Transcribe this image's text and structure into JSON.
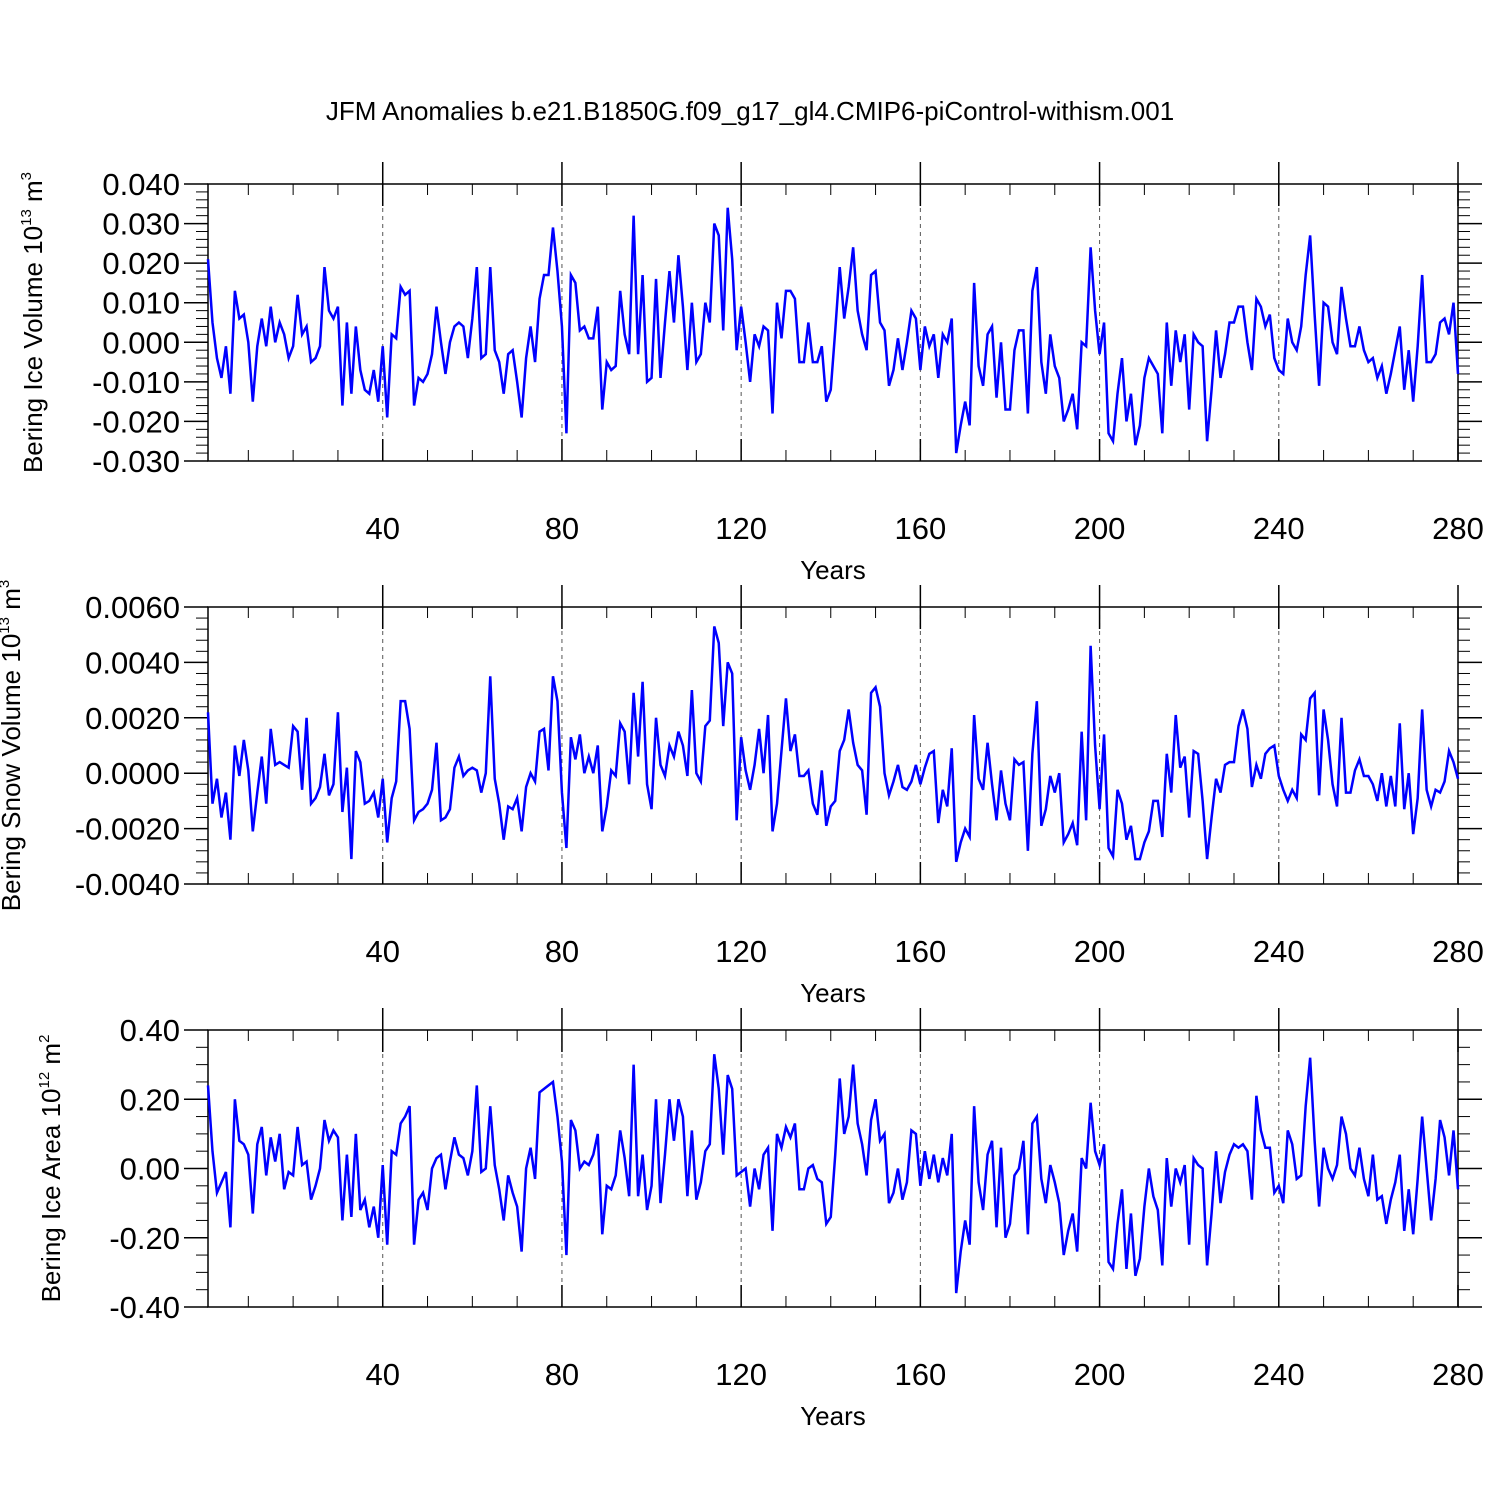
{
  "title": "JFM Anomalies b.e21.B1850G.f09_g17_gl4.CMIP6-piControl-withism.001",
  "chart_data": [
    {
      "type": "line",
      "xlabel": "Years",
      "ylabel": {
        "text": "Bering Ice Volume 10",
        "exp": "13",
        "unit": " m",
        "unit_exp": "3"
      },
      "xlim": [
        1,
        280
      ],
      "ylim": [
        -0.03,
        0.04
      ],
      "xticks": [
        "40",
        "80",
        "120",
        "160",
        "200",
        "240",
        "280"
      ],
      "yticks": [
        "0.040",
        "0.030",
        "0.020",
        "0.010",
        "0.000",
        "-0.010",
        "-0.020",
        "-0.030"
      ],
      "line_color": "#0000ff",
      "grid": "dashed vertical lines at x tick positions",
      "series": [
        {
          "name": "Bering Ice Volume",
          "x_start": 1,
          "values": [
            0.021,
            0.005,
            -0.004,
            -0.009,
            -0.001,
            -0.013,
            0.013,
            0.006,
            0.007,
            0.0,
            -0.015,
            -0.001,
            0.006,
            -0.001,
            0.009,
            0.0,
            0.005,
            0.002,
            -0.004,
            -0.001,
            0.012,
            0.002,
            0.004,
            -0.005,
            -0.004,
            -0.001,
            0.019,
            0.008,
            0.006,
            0.009,
            -0.016,
            0.005,
            -0.013,
            0.004,
            -0.007,
            -0.012,
            -0.013,
            -0.007,
            -0.015,
            -0.001,
            -0.019,
            0.002,
            0.001,
            0.014,
            0.012,
            0.013,
            -0.016,
            -0.009,
            -0.01,
            -0.008,
            -0.003,
            0.009,
            0.0,
            -0.008,
            0.0,
            0.004,
            0.005,
            0.004,
            -0.004,
            0.006,
            0.019,
            -0.004,
            -0.003,
            0.019,
            -0.002,
            -0.005,
            -0.013,
            -0.003,
            -0.002,
            -0.01,
            -0.019,
            -0.004,
            0.004,
            -0.005,
            0.011,
            0.017,
            0.017,
            0.029,
            0.018,
            0.004,
            -0.023,
            0.017,
            0.015,
            0.003,
            0.004,
            0.001,
            0.001,
            0.009,
            -0.017,
            -0.005,
            -0.007,
            -0.006,
            0.013,
            0.002,
            -0.003,
            0.032,
            -0.003,
            0.017,
            -0.01,
            -0.009,
            0.016,
            -0.009,
            0.005,
            0.018,
            0.005,
            0.022,
            0.009,
            -0.007,
            0.01,
            -0.005,
            -0.003,
            0.01,
            0.005,
            0.03,
            0.027,
            0.003,
            0.034,
            0.021,
            -0.002,
            0.009,
            0.0,
            -0.01,
            0.002,
            -0.001,
            0.004,
            0.003,
            -0.018,
            0.01,
            0.001,
            0.013,
            0.013,
            0.011,
            -0.005,
            -0.005,
            0.005,
            -0.005,
            -0.005,
            -0.001,
            -0.015,
            -0.012,
            0.003,
            0.019,
            0.006,
            0.014,
            0.024,
            0.008,
            0.002,
            -0.002,
            0.017,
            0.018,
            0.005,
            0.003,
            -0.011,
            -0.007,
            0.001,
            -0.007,
            0.0,
            0.008,
            0.006,
            -0.007,
            0.004,
            -0.001,
            0.002,
            -0.009,
            0.002,
            0.0,
            0.006,
            -0.028,
            -0.021,
            -0.015,
            -0.021,
            0.015,
            -0.006,
            -0.011,
            0.002,
            0.004,
            -0.014,
            0.0,
            -0.017,
            -0.017,
            -0.002,
            0.003,
            0.003,
            -0.018,
            0.013,
            0.019,
            -0.005,
            -0.013,
            0.002,
            -0.006,
            -0.009,
            -0.02,
            -0.017,
            -0.013,
            -0.022,
            0.0,
            -0.001,
            0.024,
            0.008,
            -0.003,
            0.005,
            -0.023,
            -0.025,
            -0.013,
            -0.004,
            -0.02,
            -0.013,
            -0.026,
            -0.021,
            -0.009,
            -0.004,
            -0.006,
            -0.008,
            -0.023,
            0.005,
            -0.011,
            0.003,
            -0.005,
            0.002,
            -0.017,
            0.002,
            0.0,
            -0.001,
            -0.025,
            -0.012,
            0.003,
            -0.009,
            -0.003,
            0.005,
            0.005,
            0.009,
            0.009,
            0.0,
            -0.007,
            0.011,
            0.009,
            0.004,
            0.007,
            -0.004,
            -0.007,
            -0.008,
            0.006,
            0.0,
            -0.002,
            0.004,
            0.017,
            0.027,
            0.007,
            -0.011,
            0.01,
            0.009,
            0.0,
            -0.003,
            0.014,
            0.006,
            -0.001,
            -0.001,
            0.004,
            -0.002,
            -0.005,
            -0.004,
            -0.009,
            -0.006,
            -0.013,
            -0.008,
            -0.002,
            0.004,
            -0.012,
            -0.002,
            -0.015,
            -0.001,
            0.017,
            -0.005,
            -0.005,
            -0.003,
            0.005,
            0.006,
            0.002,
            0.01,
            -0.008
          ]
        }
      ]
    },
    {
      "type": "line",
      "xlabel": "Years",
      "ylabel": {
        "text": "Bering Snow Volume 10",
        "exp": "13",
        "unit": " m",
        "unit_exp": "3"
      },
      "xlim": [
        1,
        280
      ],
      "ylim": [
        -0.004,
        0.006
      ],
      "xticks": [
        "40",
        "80",
        "120",
        "160",
        "200",
        "240",
        "280"
      ],
      "yticks": [
        "0.0060",
        "0.0040",
        "0.0020",
        "0.0000",
        "-0.0020",
        "-0.0040"
      ],
      "line_color": "#0000ff",
      "grid": "dashed vertical lines at x tick positions",
      "series": [
        {
          "name": "Bering Snow Volume",
          "x_start": 1,
          "values": [
            0.0022,
            -0.0011,
            -0.0002,
            -0.0016,
            -0.0007,
            -0.0024,
            0.001,
            -0.0001,
            0.0012,
            0.0001,
            -0.0021,
            -0.0007,
            0.0006,
            -0.0011,
            0.0016,
            0.0003,
            0.0004,
            0.0003,
            0.0002,
            0.0017,
            0.0015,
            -0.0006,
            0.002,
            -0.0011,
            -0.0009,
            -0.0005,
            0.0007,
            -0.0008,
            -0.0004,
            0.0022,
            -0.0014,
            0.0002,
            -0.0031,
            0.0008,
            0.0004,
            -0.0011,
            -0.001,
            -0.0007,
            -0.0016,
            -0.0002,
            -0.0025,
            -0.0009,
            -0.0003,
            0.0026,
            0.0026,
            0.0016,
            -0.0017,
            -0.0014,
            -0.0013,
            -0.0011,
            -0.0006,
            0.0011,
            -0.0017,
            -0.0016,
            -0.0013,
            0.0002,
            0.0006,
            -0.0001,
            0.0001,
            0.0002,
            0.0001,
            -0.0007,
            0.0,
            0.0035,
            -0.0002,
            -0.0011,
            -0.0024,
            -0.0012,
            -0.0013,
            -0.0009,
            -0.0021,
            -0.0005,
            0.0,
            -0.0003,
            0.0015,
            0.0016,
            0.0001,
            0.0035,
            0.0026,
            -0.0007,
            -0.0027,
            0.0013,
            0.0005,
            0.0014,
            0.0,
            0.0006,
            0.0,
            0.001,
            -0.0021,
            -0.0012,
            0.0001,
            -0.0001,
            0.0018,
            0.0015,
            -0.0004,
            0.0029,
            0.0006,
            0.0033,
            -0.0004,
            -0.0013,
            0.002,
            0.0003,
            -0.0001,
            0.001,
            0.0006,
            0.0015,
            0.001,
            -0.0001,
            0.003,
            0.0,
            -0.0003,
            0.0017,
            0.0019,
            0.0053,
            0.0047,
            0.0017,
            0.004,
            0.0036,
            -0.0017,
            0.0013,
            0.0001,
            -0.0006,
            0.0003,
            0.0016,
            0.0,
            0.0021,
            -0.0021,
            -0.0011,
            0.0008,
            0.0027,
            0.0008,
            0.0014,
            -0.0001,
            -0.0001,
            0.0001,
            -0.0011,
            -0.0015,
            0.0001,
            -0.0019,
            -0.0012,
            -0.001,
            0.0008,
            0.0012,
            0.0023,
            0.0011,
            0.0003,
            0.0001,
            -0.0015,
            0.0029,
            0.0031,
            0.0024,
            0.0,
            -0.0008,
            -0.0003,
            0.0003,
            -0.0005,
            -0.0006,
            -0.0003,
            0.0003,
            -0.0004,
            0.0002,
            0.0007,
            0.0008,
            -0.0018,
            -0.0006,
            -0.0012,
            0.0009,
            -0.0032,
            -0.0025,
            -0.002,
            -0.0023,
            0.0021,
            -0.0002,
            -0.0006,
            0.0011,
            -0.0004,
            -0.0017,
            0.0001,
            -0.0011,
            -0.0017,
            0.0005,
            0.0003,
            0.0004,
            -0.0028,
            0.0007,
            0.0026,
            -0.0019,
            -0.0013,
            -0.0001,
            -0.0007,
            0.0,
            -0.0025,
            -0.0022,
            -0.0018,
            -0.0026,
            0.0015,
            -0.0017,
            0.0046,
            0.001,
            -0.0013,
            0.0014,
            -0.0027,
            -0.003,
            -0.0006,
            -0.0011,
            -0.0024,
            -0.0019,
            -0.0031,
            -0.0031,
            -0.0025,
            -0.0021,
            -0.001,
            -0.001,
            -0.0023,
            0.0007,
            -0.0007,
            0.0021,
            0.0002,
            0.0006,
            -0.0016,
            0.0008,
            0.0007,
            -0.001,
            -0.0031,
            -0.0016,
            -0.0002,
            -0.0007,
            0.0003,
            0.0004,
            0.0004,
            0.0017,
            0.0023,
            0.0016,
            -0.0005,
            0.0003,
            -0.0002,
            0.0007,
            0.0009,
            0.001,
            -0.0001,
            -0.0006,
            -0.001,
            -0.0006,
            -0.0009,
            0.0014,
            0.0012,
            0.0027,
            0.0029,
            -0.0008,
            0.0023,
            0.0012,
            -0.0004,
            -0.0012,
            0.002,
            -0.0007,
            -0.0007,
            0.0001,
            0.0005,
            -0.0001,
            -0.0001,
            -0.0004,
            -0.001,
            0.0,
            -0.0012,
            -0.0001,
            -0.0012,
            0.0018,
            -0.0013,
            0.0,
            -0.0022,
            -0.0009,
            0.0023,
            -0.0006,
            -0.0012,
            -0.0006,
            -0.0007,
            -0.0003,
            0.0008,
            0.0004,
            -0.0002
          ]
        }
      ]
    },
    {
      "type": "line",
      "xlabel": "Years",
      "ylabel": {
        "text": "Bering Ice Area 10",
        "exp": "12",
        "unit": " m",
        "unit_exp": "2"
      },
      "xlim": [
        1,
        280
      ],
      "ylim": [
        -0.4,
        0.4
      ],
      "xticks": [
        "40",
        "80",
        "120",
        "160",
        "200",
        "240",
        "280"
      ],
      "yticks": [
        "0.40",
        "0.20",
        "0.00",
        "-0.20",
        "-0.40"
      ],
      "line_color": "#0000ff",
      "grid": "dashed vertical lines at x tick positions",
      "series": [
        {
          "name": "Bering Ice Area",
          "x_start": 1,
          "values": [
            0.24,
            0.05,
            -0.07,
            -0.04,
            -0.01,
            -0.17,
            0.2,
            0.08,
            0.07,
            0.04,
            -0.13,
            0.07,
            0.12,
            -0.02,
            0.09,
            0.02,
            0.1,
            -0.06,
            -0.01,
            -0.02,
            0.12,
            0.01,
            0.02,
            -0.09,
            -0.05,
            0.0,
            0.14,
            0.08,
            0.11,
            0.09,
            -0.15,
            0.04,
            -0.14,
            0.1,
            -0.12,
            -0.09,
            -0.17,
            -0.11,
            -0.2,
            0.01,
            -0.22,
            0.05,
            0.04,
            0.13,
            0.15,
            0.18,
            -0.22,
            -0.09,
            -0.07,
            -0.12,
            0.0,
            0.03,
            0.04,
            -0.06,
            0.02,
            0.09,
            0.04,
            0.03,
            -0.02,
            0.05,
            0.24,
            -0.01,
            0.0,
            0.18,
            0.01,
            -0.06,
            -0.15,
            -0.02,
            -0.07,
            -0.11,
            -0.24,
            0.0,
            0.06,
            -0.03,
            0.22,
            0.23,
            0.24,
            0.25,
            0.15,
            0.02,
            -0.25,
            0.14,
            0.11,
            0.0,
            0.02,
            0.01,
            0.04,
            0.1,
            -0.19,
            -0.05,
            -0.06,
            -0.02,
            0.11,
            0.03,
            -0.08,
            0.3,
            -0.08,
            0.04,
            -0.12,
            -0.05,
            0.2,
            -0.1,
            0.04,
            0.2,
            0.08,
            0.2,
            0.15,
            -0.08,
            0.11,
            -0.09,
            -0.04,
            0.05,
            0.07,
            0.33,
            0.23,
            0.04,
            0.27,
            0.23,
            -0.02,
            -0.01,
            0.0,
            -0.11,
            0.0,
            -0.06,
            0.04,
            0.06,
            -0.18,
            0.1,
            0.06,
            0.12,
            0.09,
            0.13,
            -0.06,
            -0.06,
            0.0,
            0.01,
            -0.03,
            -0.04,
            -0.16,
            -0.14,
            0.04,
            0.26,
            0.1,
            0.15,
            0.3,
            0.13,
            0.07,
            -0.02,
            0.14,
            0.2,
            0.08,
            0.1,
            -0.1,
            -0.07,
            0.0,
            -0.09,
            -0.04,
            0.11,
            0.1,
            -0.05,
            0.05,
            -0.03,
            0.04,
            -0.04,
            0.03,
            -0.02,
            0.1,
            -0.36,
            -0.24,
            -0.15,
            -0.22,
            0.18,
            -0.04,
            -0.12,
            0.04,
            0.08,
            -0.17,
            0.06,
            -0.2,
            -0.16,
            -0.02,
            0.0,
            0.08,
            -0.19,
            0.13,
            0.15,
            -0.03,
            -0.1,
            0.01,
            -0.04,
            -0.1,
            -0.25,
            -0.18,
            -0.13,
            -0.24,
            0.03,
            0.0,
            0.19,
            0.05,
            0.01,
            0.07,
            -0.27,
            -0.29,
            -0.16,
            -0.06,
            -0.29,
            -0.13,
            -0.31,
            -0.26,
            -0.11,
            0.0,
            -0.08,
            -0.12,
            -0.28,
            0.03,
            -0.11,
            0.0,
            -0.04,
            0.01,
            -0.22,
            0.03,
            0.01,
            0.0,
            -0.28,
            -0.13,
            0.05,
            -0.1,
            -0.01,
            0.04,
            0.07,
            0.06,
            0.07,
            0.05,
            -0.09,
            0.21,
            0.11,
            0.06,
            0.06,
            -0.07,
            -0.05,
            -0.1,
            0.11,
            0.07,
            -0.03,
            -0.02,
            0.18,
            0.32,
            0.08,
            -0.11,
            0.06,
            0.0,
            -0.03,
            0.01,
            0.15,
            0.1,
            0.0,
            -0.02,
            0.06,
            -0.03,
            -0.08,
            0.04,
            -0.09,
            -0.08,
            -0.16,
            -0.09,
            -0.04,
            0.04,
            -0.18,
            -0.06,
            -0.19,
            -0.03,
            0.15,
            0.0,
            -0.15,
            -0.03,
            0.14,
            0.09,
            -0.02,
            0.11,
            -0.06
          ]
        }
      ]
    }
  ]
}
